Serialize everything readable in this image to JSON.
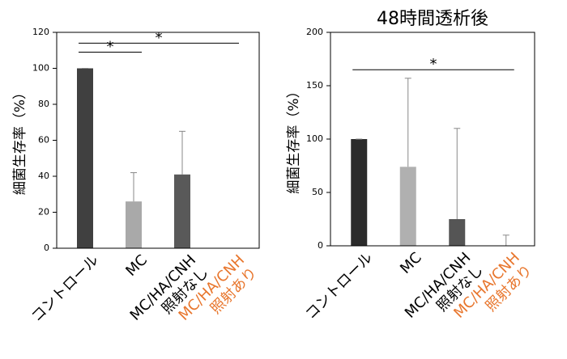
{
  "chart_data": [
    {
      "type": "bar",
      "ylabel": "細菌生存率（%）",
      "categories": [
        [
          "コントロール"
        ],
        [
          "MC"
        ],
        [
          "MC/HA/CNH",
          "照射なし"
        ],
        [
          "MC/HA/CNH",
          "照射あり"
        ]
      ],
      "category_colors": [
        "#000000",
        "#000000",
        "#000000",
        "#e8762d"
      ],
      "values": [
        100,
        26,
        41,
        0
      ],
      "errors": [
        0,
        16,
        24,
        0
      ],
      "colors": [
        "#404040",
        "#a9a9a9",
        "#595959",
        "#595959"
      ],
      "ylim": [
        0,
        120
      ],
      "yticks": [
        0,
        20,
        40,
        60,
        80,
        100,
        120
      ],
      "significance": [
        {
          "from": 0,
          "to": 3,
          "y": 114,
          "label": "*"
        },
        {
          "from": 0,
          "to": 1,
          "y": 109,
          "label": "*"
        }
      ]
    },
    {
      "type": "bar",
      "title": "48時間透析後",
      "ylabel": "細菌生存率（%）",
      "categories": [
        [
          "コントロール"
        ],
        [
          "MC"
        ],
        [
          "MC/HA/CNH",
          "照射なし"
        ],
        [
          "MC/HA/CNH",
          "照射あり"
        ]
      ],
      "category_colors": [
        "#000000",
        "#000000",
        "#000000",
        "#e8762d"
      ],
      "values": [
        100,
        74,
        25,
        0
      ],
      "errors": [
        0,
        83,
        85,
        10
      ],
      "colors": [
        "#2b2b2b",
        "#b0b0b0",
        "#555555",
        "#555555"
      ],
      "ylim": [
        0,
        200
      ],
      "yticks": [
        0,
        50,
        100,
        150,
        200
      ],
      "significance": [
        {
          "from": 0,
          "to": 3,
          "y": 165,
          "label": "*"
        }
      ]
    }
  ]
}
